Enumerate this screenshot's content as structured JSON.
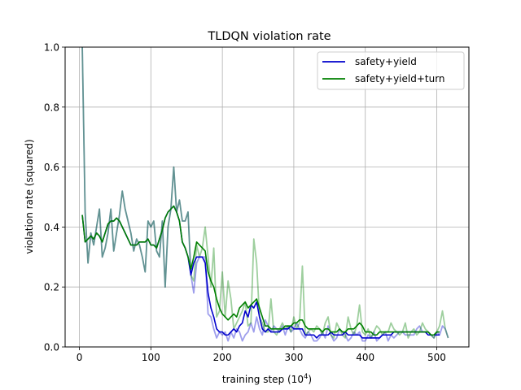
{
  "chart_data": {
    "type": "line",
    "title": "TLDQN violation rate",
    "xlabel_main": "training step (10",
    "xlabel_sup": "4",
    "xlabel_close": ")",
    "ylabel": "violation rate (squared)",
    "xlim": [
      -20,
      545
    ],
    "ylim": [
      0.0,
      1.0
    ],
    "xticks": [
      0,
      100,
      200,
      300,
      400,
      500
    ],
    "xtick_labels": [
      "0",
      "100",
      "200",
      "300",
      "400",
      "500"
    ],
    "yticks": [
      0.0,
      0.2,
      0.4,
      0.6,
      0.8,
      1.0
    ],
    "ytick_labels": [
      "0.0",
      "0.2",
      "0.4",
      "0.6",
      "0.8",
      "1.0"
    ],
    "grid": true,
    "legend": "upper-right",
    "series": [
      {
        "name": "safety+yield",
        "color": "#0000cc",
        "raw_x": [
          4,
          8,
          12,
          16,
          20,
          24,
          28,
          32,
          36,
          40,
          44,
          48,
          52,
          56,
          60,
          64,
          68,
          72,
          76,
          80,
          84,
          88,
          92,
          96,
          100,
          104,
          108,
          112,
          116,
          120,
          124,
          128,
          132,
          136,
          140,
          144,
          148,
          152,
          156,
          160,
          164,
          168,
          172,
          176,
          180,
          184,
          188,
          192,
          196,
          200,
          204,
          208,
          212,
          216,
          220,
          224,
          228,
          232,
          236,
          240,
          244,
          248,
          252,
          256,
          260,
          264,
          268,
          272,
          276,
          280,
          284,
          288,
          292,
          296,
          300,
          304,
          308,
          312,
          316,
          320,
          324,
          328,
          332,
          336,
          340,
          344,
          348,
          352,
          356,
          360,
          364,
          368,
          372,
          376,
          380,
          384,
          388,
          392,
          396,
          400,
          404,
          408,
          412,
          416,
          420,
          424,
          428,
          432,
          436,
          440,
          444,
          448,
          452,
          456,
          460,
          464,
          468,
          472,
          476,
          480,
          484,
          488,
          492,
          496,
          500,
          504,
          508,
          512,
          516
        ],
        "raw_y": [
          1.0,
          0.45,
          0.28,
          0.38,
          0.34,
          0.4,
          0.46,
          0.3,
          0.33,
          0.38,
          0.46,
          0.32,
          0.38,
          0.44,
          0.52,
          0.46,
          0.42,
          0.38,
          0.32,
          0.36,
          0.34,
          0.3,
          0.25,
          0.42,
          0.4,
          0.42,
          0.32,
          0.3,
          0.42,
          0.2,
          0.4,
          0.46,
          0.6,
          0.45,
          0.49,
          0.42,
          0.42,
          0.45,
          0.24,
          0.18,
          0.28,
          0.3,
          0.3,
          0.3,
          0.11,
          0.1,
          0.06,
          0.03,
          0.05,
          0.04,
          0.05,
          0.02,
          0.05,
          0.03,
          0.06,
          0.05,
          0.02,
          0.04,
          0.05,
          0.08,
          0.05,
          0.1,
          0.06,
          0.04,
          0.09,
          0.07,
          0.05,
          0.07,
          0.06,
          0.05,
          0.07,
          0.04,
          0.07,
          0.05,
          0.06,
          0.08,
          0.06,
          0.04,
          0.03,
          0.05,
          0.04,
          0.02,
          0.02,
          0.03,
          0.05,
          0.03,
          0.07,
          0.04,
          0.02,
          0.03,
          0.06,
          0.05,
          0.04,
          0.02,
          0.03,
          0.05,
          0.04,
          0.05,
          0.02,
          0.02,
          0.04,
          0.03,
          0.05,
          0.02,
          0.03,
          0.04,
          0.05,
          0.02,
          0.04,
          0.03,
          0.04,
          0.05,
          0.05,
          0.04,
          0.04,
          0.04,
          0.04,
          0.06,
          0.07,
          0.05,
          0.05,
          0.05,
          0.04,
          0.03,
          0.05,
          0.04,
          0.07,
          0.06,
          0.03
        ],
        "smooth_x": [
          4,
          8,
          12,
          16,
          20,
          24,
          28,
          32,
          36,
          40,
          44,
          48,
          52,
          56,
          60,
          64,
          68,
          72,
          76,
          80,
          84,
          88,
          92,
          96,
          100,
          104,
          108,
          112,
          116,
          120,
          124,
          128,
          132,
          136,
          140,
          144,
          148,
          152,
          156,
          160,
          164,
          168,
          172,
          176,
          180,
          184,
          188,
          192,
          196,
          200,
          204,
          208,
          212,
          216,
          220,
          224,
          228,
          232,
          236,
          240,
          244,
          248,
          252,
          256,
          260,
          264,
          268,
          272,
          276,
          280,
          284,
          288,
          292,
          296,
          300,
          304,
          308,
          312,
          316,
          320,
          324,
          328,
          332,
          336,
          340,
          344,
          348,
          352,
          356,
          360,
          364,
          368,
          372,
          376,
          380,
          384,
          388,
          392,
          396,
          400,
          404,
          408,
          412,
          416,
          420,
          424,
          428,
          432,
          436,
          440,
          444,
          448,
          452,
          456,
          460,
          464,
          468,
          472,
          476,
          480,
          484,
          488,
          492,
          496,
          500,
          504
        ],
        "smooth_y": [
          0.44,
          0.35,
          0.36,
          0.37,
          0.36,
          0.38,
          0.37,
          0.35,
          0.38,
          0.41,
          0.42,
          0.42,
          0.43,
          0.42,
          0.4,
          0.38,
          0.36,
          0.34,
          0.34,
          0.34,
          0.35,
          0.35,
          0.35,
          0.36,
          0.34,
          0.34,
          0.33,
          0.36,
          0.39,
          0.43,
          0.45,
          0.46,
          0.47,
          0.45,
          0.42,
          0.35,
          0.33,
          0.3,
          0.24,
          0.28,
          0.3,
          0.3,
          0.3,
          0.28,
          0.18,
          0.13,
          0.1,
          0.06,
          0.05,
          0.05,
          0.04,
          0.04,
          0.05,
          0.06,
          0.05,
          0.07,
          0.08,
          0.12,
          0.1,
          0.14,
          0.13,
          0.15,
          0.1,
          0.06,
          0.05,
          0.06,
          0.05,
          0.05,
          0.05,
          0.05,
          0.06,
          0.06,
          0.06,
          0.07,
          0.06,
          0.06,
          0.06,
          0.06,
          0.04,
          0.04,
          0.04,
          0.04,
          0.03,
          0.04,
          0.04,
          0.04,
          0.04,
          0.05,
          0.04,
          0.04,
          0.04,
          0.04,
          0.05,
          0.04,
          0.04,
          0.04,
          0.04,
          0.04,
          0.03,
          0.03,
          0.03,
          0.03,
          0.03,
          0.03,
          0.03,
          0.04,
          0.04,
          0.04,
          0.04,
          0.05,
          0.05,
          0.05,
          0.05,
          0.05,
          0.05,
          0.05,
          0.05,
          0.05,
          0.05,
          0.05,
          0.05,
          0.04,
          0.04,
          0.04,
          0.04,
          0.04
        ]
      },
      {
        "name": "safety+yield+turn",
        "color": "#008000",
        "raw_x": [
          4,
          8,
          12,
          16,
          20,
          24,
          28,
          32,
          36,
          40,
          44,
          48,
          52,
          56,
          60,
          64,
          68,
          72,
          76,
          80,
          84,
          88,
          92,
          96,
          100,
          104,
          108,
          112,
          116,
          120,
          124,
          128,
          132,
          136,
          140,
          144,
          148,
          152,
          156,
          160,
          164,
          168,
          172,
          176,
          180,
          184,
          188,
          192,
          196,
          200,
          204,
          208,
          212,
          216,
          220,
          224,
          228,
          232,
          236,
          240,
          244,
          248,
          252,
          256,
          260,
          264,
          268,
          272,
          276,
          280,
          284,
          288,
          292,
          296,
          300,
          304,
          308,
          312,
          316,
          320,
          324,
          328,
          332,
          336,
          340,
          344,
          348,
          352,
          356,
          360,
          364,
          368,
          372,
          376,
          380,
          384,
          388,
          392,
          396,
          400,
          404,
          408,
          412,
          416,
          420,
          424,
          428,
          432,
          436,
          440,
          444,
          448,
          452,
          456,
          460,
          464,
          468,
          472,
          476,
          480,
          484,
          488,
          492,
          496,
          500,
          504,
          508,
          512,
          516
        ],
        "raw_y": [
          1.0,
          0.45,
          0.28,
          0.38,
          0.34,
          0.4,
          0.46,
          0.3,
          0.33,
          0.38,
          0.46,
          0.32,
          0.38,
          0.44,
          0.52,
          0.46,
          0.42,
          0.38,
          0.32,
          0.36,
          0.34,
          0.3,
          0.25,
          0.42,
          0.4,
          0.42,
          0.32,
          0.3,
          0.42,
          0.2,
          0.4,
          0.46,
          0.6,
          0.45,
          0.49,
          0.42,
          0.42,
          0.45,
          0.24,
          0.22,
          0.34,
          0.3,
          0.33,
          0.4,
          0.3,
          0.2,
          0.33,
          0.1,
          0.12,
          0.25,
          0.1,
          0.22,
          0.16,
          0.06,
          0.08,
          0.1,
          0.12,
          0.15,
          0.07,
          0.08,
          0.36,
          0.28,
          0.1,
          0.08,
          0.05,
          0.05,
          0.16,
          0.05,
          0.04,
          0.06,
          0.08,
          0.06,
          0.07,
          0.05,
          0.1,
          0.06,
          0.08,
          0.27,
          0.04,
          0.05,
          0.06,
          0.05,
          0.07,
          0.06,
          0.04,
          0.08,
          0.1,
          0.04,
          0.03,
          0.08,
          0.06,
          0.04,
          0.03,
          0.1,
          0.06,
          0.04,
          0.07,
          0.14,
          0.05,
          0.04,
          0.06,
          0.03,
          0.05,
          0.07,
          0.06,
          0.04,
          0.05,
          0.05,
          0.08,
          0.06,
          0.05,
          0.04,
          0.05,
          0.08,
          0.03,
          0.05,
          0.06,
          0.04,
          0.05,
          0.08,
          0.06,
          0.05,
          0.04,
          0.03,
          0.05,
          0.07,
          0.12,
          0.06,
          0.03
        ],
        "smooth_x": [
          4,
          8,
          12,
          16,
          20,
          24,
          28,
          32,
          36,
          40,
          44,
          48,
          52,
          56,
          60,
          64,
          68,
          72,
          76,
          80,
          84,
          88,
          92,
          96,
          100,
          104,
          108,
          112,
          116,
          120,
          124,
          128,
          132,
          136,
          140,
          144,
          148,
          152,
          156,
          160,
          164,
          168,
          172,
          176,
          180,
          184,
          188,
          192,
          196,
          200,
          204,
          208,
          212,
          216,
          220,
          224,
          228,
          232,
          236,
          240,
          244,
          248,
          252,
          256,
          260,
          264,
          268,
          272,
          276,
          280,
          284,
          288,
          292,
          296,
          300,
          304,
          308,
          312,
          316,
          320,
          324,
          328,
          332,
          336,
          340,
          344,
          348,
          352,
          356,
          360,
          364,
          368,
          372,
          376,
          380,
          384,
          388,
          392,
          396,
          400,
          404,
          408,
          412,
          416,
          420,
          424,
          428,
          432,
          436,
          440,
          444,
          448,
          452,
          456,
          460,
          464,
          468,
          472,
          476,
          480,
          484,
          488,
          492,
          496,
          500,
          504
        ],
        "smooth_y": [
          0.44,
          0.35,
          0.36,
          0.37,
          0.36,
          0.38,
          0.37,
          0.35,
          0.38,
          0.41,
          0.42,
          0.42,
          0.43,
          0.42,
          0.4,
          0.38,
          0.36,
          0.34,
          0.34,
          0.34,
          0.35,
          0.35,
          0.35,
          0.36,
          0.34,
          0.34,
          0.33,
          0.36,
          0.39,
          0.43,
          0.45,
          0.46,
          0.47,
          0.45,
          0.42,
          0.35,
          0.33,
          0.3,
          0.26,
          0.3,
          0.35,
          0.34,
          0.33,
          0.32,
          0.25,
          0.22,
          0.2,
          0.16,
          0.13,
          0.11,
          0.1,
          0.09,
          0.1,
          0.11,
          0.1,
          0.13,
          0.14,
          0.15,
          0.13,
          0.14,
          0.15,
          0.16,
          0.13,
          0.1,
          0.07,
          0.07,
          0.06,
          0.06,
          0.06,
          0.06,
          0.06,
          0.07,
          0.07,
          0.07,
          0.08,
          0.08,
          0.09,
          0.09,
          0.07,
          0.06,
          0.06,
          0.06,
          0.06,
          0.06,
          0.05,
          0.06,
          0.06,
          0.05,
          0.05,
          0.05,
          0.06,
          0.05,
          0.05,
          0.06,
          0.06,
          0.06,
          0.07,
          0.08,
          0.07,
          0.05,
          0.05,
          0.05,
          0.04,
          0.04,
          0.05,
          0.05,
          0.05,
          0.05,
          0.05,
          0.05,
          0.05,
          0.05,
          0.05,
          0.05,
          0.05,
          0.05,
          0.05,
          0.05,
          0.05,
          0.05,
          0.05,
          0.05,
          0.04,
          0.04,
          0.05,
          0.05
        ]
      }
    ]
  }
}
